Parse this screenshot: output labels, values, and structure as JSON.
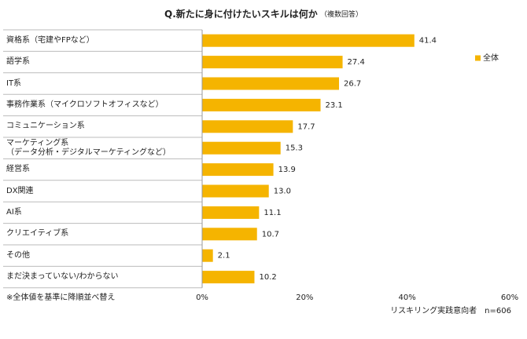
{
  "chart_data": {
    "type": "barh",
    "title": "Q.新たに身に付けたいスキルは何か",
    "subtitle": "（複数回答）",
    "categories": [
      "資格系（宅建やFPなど）",
      "語学系",
      "IT系",
      "事務作業系（マイクロソフトオフィスなど）",
      "コミュニケーション系",
      "マーケティング系\n（データ分析・デジタルマーケティングなど）",
      "経営系",
      "DX関連",
      "AI系",
      "クリエイティブ系",
      "その他",
      "まだ決まっていない/わからない"
    ],
    "series": [
      {
        "name": "全体",
        "color": "#f5b400",
        "values": [
          41.4,
          27.4,
          26.7,
          23.1,
          17.7,
          15.3,
          13.9,
          13.0,
          11.1,
          10.7,
          2.1,
          10.2
        ],
        "value_labels": [
          "41.4",
          "27.4",
          "26.7",
          "23.1",
          "17.7",
          "15.3",
          "13.9",
          "13.0",
          "11.1",
          "10.7",
          "2.1",
          "10.2"
        ]
      }
    ],
    "xlim": [
      0,
      60
    ],
    "xticks": [
      {
        "value": 0,
        "label": "0%"
      },
      {
        "value": 20,
        "label": "20%"
      },
      {
        "value": 40,
        "label": "40%"
      },
      {
        "value": 60,
        "label": "60%"
      }
    ],
    "grid": false,
    "legend": "right",
    "note": "※全体値を基準に降順並べ替え",
    "sample_note": "リスキリング実践意向者　n=606"
  }
}
